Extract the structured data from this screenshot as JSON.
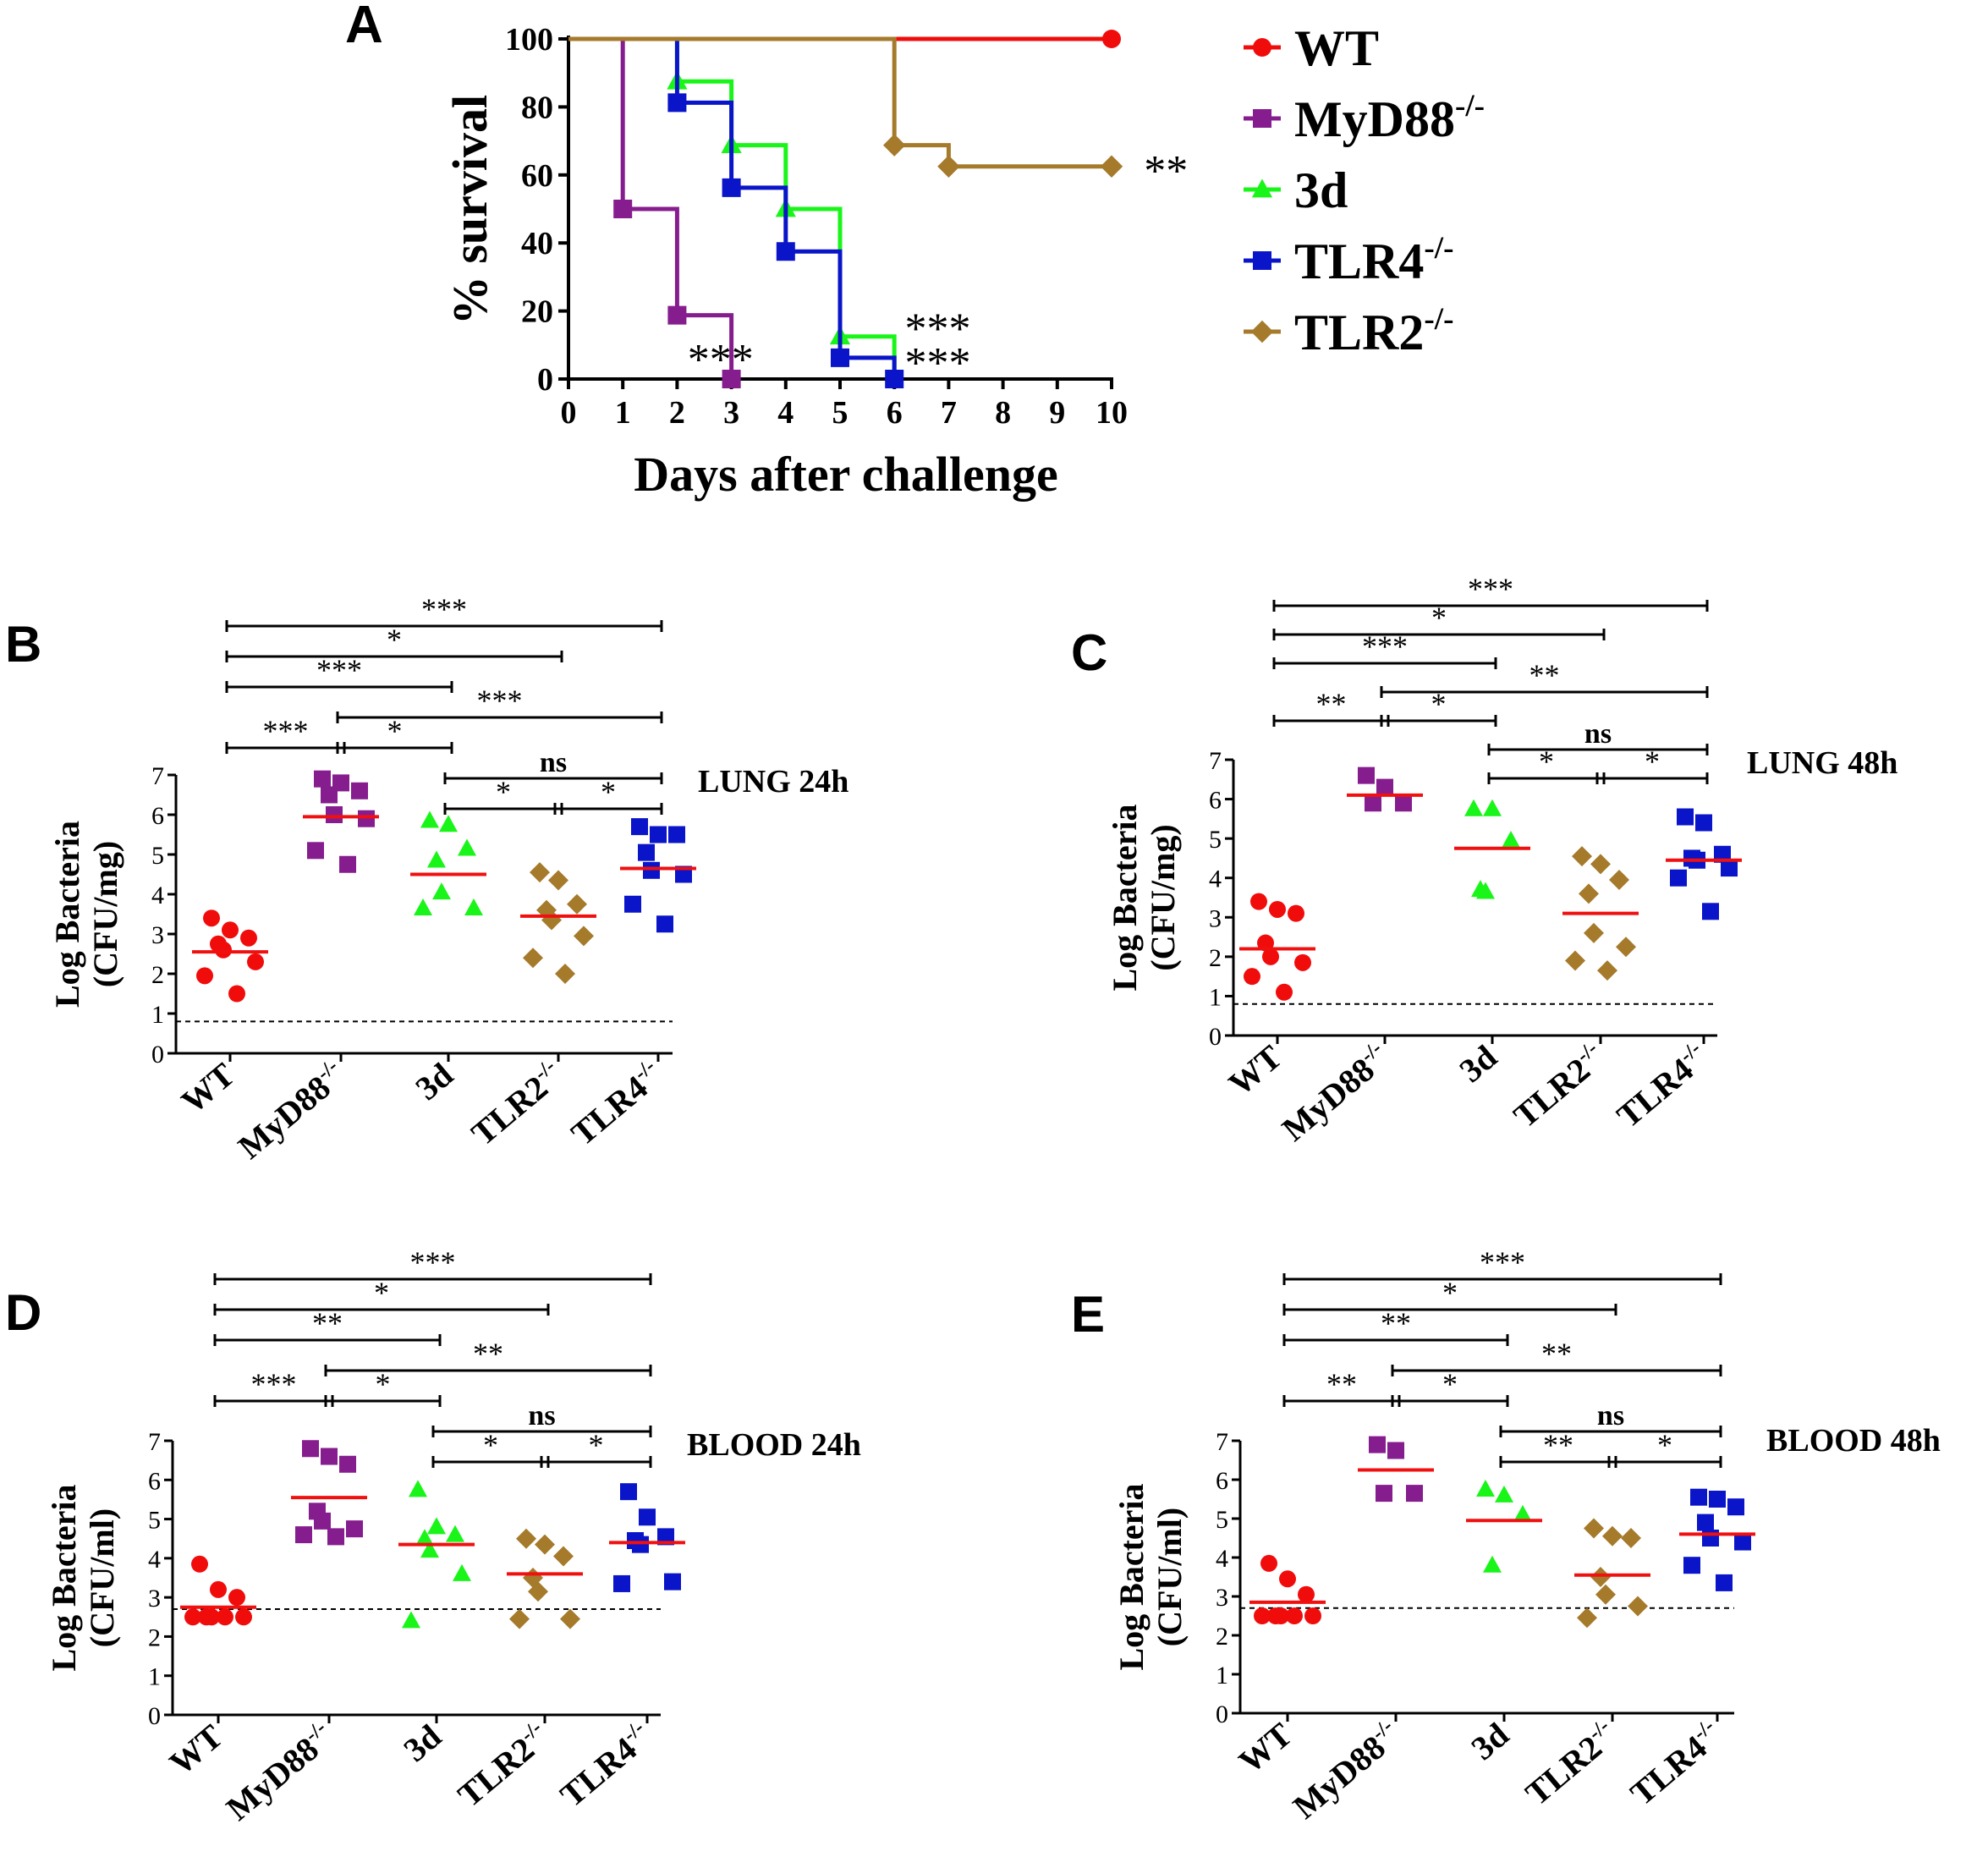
{
  "colors": {
    "WT": "#f10c0c",
    "MyD88": "#861d8e",
    "3d": "#19f519",
    "TLR4": "#0a14c8",
    "TLR2": "#a57a2b",
    "median": "#f01010",
    "axis": "#000000"
  },
  "chart_data": [
    {
      "id": "A",
      "panel_label": "A",
      "type": "line",
      "title": "",
      "xlabel": "Days after challenge",
      "ylabel": "% survival",
      "xlim": [
        0,
        10
      ],
      "ylim": [
        0,
        100
      ],
      "xticks": [
        "0",
        "1",
        "2",
        "3",
        "4",
        "5",
        "6",
        "7",
        "8",
        "9",
        "10"
      ],
      "yticks": [
        "0",
        "20",
        "40",
        "60",
        "80",
        "100"
      ],
      "series": [
        {
          "name": "WT",
          "sup": "",
          "color_key": "WT",
          "marker": "circle",
          "points": [
            [
              0,
              100
            ],
            [
              10,
              100
            ]
          ],
          "markers": [
            [
              10,
              100
            ]
          ]
        },
        {
          "name": "MyD88",
          "sup": "-/-",
          "color_key": "MyD88",
          "marker": "square",
          "points": [
            [
              0,
              100
            ],
            [
              1,
              100
            ],
            [
              1,
              50
            ],
            [
              2,
              50
            ],
            [
              2,
              18.75
            ],
            [
              3,
              18.75
            ],
            [
              3,
              0
            ]
          ],
          "markers": [
            [
              1,
              50
            ],
            [
              2,
              18.75
            ],
            [
              3,
              0
            ]
          ]
        },
        {
          "name": "3d",
          "sup": "",
          "color_key": "3d",
          "marker": "triangle",
          "points": [
            [
              0,
              100
            ],
            [
              2,
              100
            ],
            [
              2,
              87.5
            ],
            [
              3,
              87.5
            ],
            [
              3,
              68.75
            ],
            [
              4,
              68.75
            ],
            [
              4,
              50
            ],
            [
              5,
              50
            ],
            [
              5,
              12.5
            ],
            [
              6,
              12.5
            ],
            [
              6,
              0
            ]
          ],
          "markers": [
            [
              2,
              87.5
            ],
            [
              3,
              68.75
            ],
            [
              4,
              50
            ],
            [
              5,
              12.5
            ]
          ]
        },
        {
          "name": "TLR4",
          "sup": "-/-",
          "color_key": "TLR4",
          "marker": "square",
          "points": [
            [
              0,
              100
            ],
            [
              2,
              100
            ],
            [
              2,
              81.25
            ],
            [
              3,
              81.25
            ],
            [
              3,
              56.25
            ],
            [
              4,
              56.25
            ],
            [
              4,
              37.5
            ],
            [
              5,
              37.5
            ],
            [
              5,
              6.25
            ],
            [
              6,
              6.25
            ],
            [
              6,
              0
            ]
          ],
          "markers": [
            [
              2,
              81.25
            ],
            [
              3,
              56.25
            ],
            [
              4,
              37.5
            ],
            [
              5,
              6.25
            ],
            [
              6,
              0
            ]
          ]
        },
        {
          "name": "TLR2",
          "sup": "-/-",
          "color_key": "TLR2",
          "marker": "diamond",
          "points": [
            [
              0,
              100
            ],
            [
              6,
              100
            ],
            [
              6,
              68.75
            ],
            [
              7,
              68.75
            ],
            [
              7,
              62.5
            ],
            [
              10,
              62.5
            ]
          ],
          "markers": [
            [
              6,
              68.75
            ],
            [
              7,
              62.5
            ],
            [
              10,
              62.5
            ]
          ]
        }
      ],
      "annotations": [
        {
          "text": "***",
          "x": 2.8,
          "y": 7
        },
        {
          "text": "***",
          "x": 6.8,
          "y": 16
        },
        {
          "text": "***",
          "x": 6.8,
          "y": 6
        },
        {
          "text": "**",
          "x": 11.0,
          "y": 62.5
        }
      ],
      "legend_order": [
        "WT",
        "MyD88",
        "3d",
        "TLR4",
        "TLR2"
      ]
    },
    {
      "id": "B",
      "panel_label": "B",
      "type": "scatter",
      "title": "LUNG 24h",
      "ylabel": [
        "Log Bacteria",
        "(CFU/mg)"
      ],
      "ylim": [
        0,
        7
      ],
      "yticks": [
        "0",
        "1",
        "2",
        "3",
        "4",
        "5",
        "6",
        "7"
      ],
      "detection_limit": 0.8,
      "groups": [
        {
          "name": "WT",
          "sup": "",
          "color_key": "WT",
          "marker": "circle",
          "median": 2.55,
          "points": [
            3.4,
            3.1,
            2.9,
            2.75,
            2.6,
            2.3,
            1.95,
            1.5
          ]
        },
        {
          "name": "MyD88",
          "sup": "-/-",
          "color_key": "MyD88",
          "marker": "square",
          "median": 5.95,
          "points": [
            6.9,
            6.8,
            6.6,
            6.5,
            6.0,
            5.9,
            5.1,
            4.75
          ]
        },
        {
          "name": "3d",
          "sup": "",
          "color_key": "3d",
          "marker": "triangle",
          "median": 4.5,
          "points": [
            5.85,
            5.75,
            5.15,
            4.85,
            4.05,
            3.65,
            3.65
          ]
        },
        {
          "name": "TLR2",
          "sup": "-/-",
          "color_key": "TLR2",
          "marker": "diamond",
          "median": 3.45,
          "points": [
            4.55,
            4.35,
            3.75,
            3.6,
            3.35,
            2.95,
            2.4,
            2.0
          ]
        },
        {
          "name": "TLR4",
          "sup": "-/-",
          "color_key": "TLR4",
          "marker": "square",
          "median": 4.65,
          "points": [
            5.7,
            5.5,
            5.5,
            5.05,
            4.6,
            4.5,
            3.75,
            3.25
          ]
        }
      ],
      "brackets": [
        {
          "from": 0,
          "to": 4,
          "level": 0,
          "label": "***"
        },
        {
          "from": 0,
          "to": 3,
          "level": 1,
          "label": "*"
        },
        {
          "from": 0,
          "to": 2,
          "level": 2,
          "label": "***"
        },
        {
          "from": 1,
          "to": 4,
          "level": 3,
          "label": "***"
        },
        {
          "from": 0,
          "to": 1,
          "level": 4,
          "label": "***"
        },
        {
          "from": 1,
          "to": 2,
          "level": 4,
          "label": "*"
        },
        {
          "from": 2,
          "to": 4,
          "level": 5,
          "label": "ns"
        },
        {
          "from": 2,
          "to": 3,
          "level": 6,
          "label": "*"
        },
        {
          "from": 3,
          "to": 4,
          "level": 6,
          "label": "*"
        }
      ]
    },
    {
      "id": "C",
      "panel_label": "C",
      "type": "scatter",
      "title": "LUNG 48h",
      "ylabel": [
        "Log Bacteria",
        "(CFU/mg)"
      ],
      "ylim": [
        0,
        7
      ],
      "yticks": [
        "0",
        "1",
        "2",
        "3",
        "4",
        "5",
        "6",
        "7"
      ],
      "detection_limit": 0.8,
      "groups": [
        {
          "name": "WT",
          "sup": "",
          "color_key": "WT",
          "marker": "circle",
          "median": 2.2,
          "points": [
            3.4,
            3.2,
            3.1,
            2.35,
            2.0,
            1.85,
            1.5,
            1.1
          ]
        },
        {
          "name": "MyD88",
          "sup": "-/-",
          "color_key": "MyD88",
          "marker": "square",
          "median": 6.1,
          "points": [
            6.6,
            6.3,
            5.9,
            5.9
          ]
        },
        {
          "name": "3d",
          "sup": "",
          "color_key": "3d",
          "marker": "triangle",
          "median": 4.75,
          "points": [
            5.75,
            5.75,
            4.95,
            3.7,
            3.65
          ]
        },
        {
          "name": "TLR2",
          "sup": "-/-",
          "color_key": "TLR2",
          "marker": "diamond",
          "median": 3.1,
          "points": [
            4.55,
            4.35,
            3.95,
            3.6,
            2.6,
            2.25,
            1.9,
            1.65
          ]
        },
        {
          "name": "TLR4",
          "sup": "-/-",
          "color_key": "TLR4",
          "marker": "square",
          "median": 4.45,
          "points": [
            5.55,
            5.4,
            4.6,
            4.5,
            4.45,
            4.25,
            4.0,
            3.15
          ]
        }
      ],
      "brackets": [
        {
          "from": 0,
          "to": 4,
          "level": 0,
          "label": "***"
        },
        {
          "from": 0,
          "to": 3,
          "level": 1,
          "label": "*"
        },
        {
          "from": 0,
          "to": 2,
          "level": 2,
          "label": "***"
        },
        {
          "from": 1,
          "to": 4,
          "level": 3,
          "label": "**"
        },
        {
          "from": 0,
          "to": 1,
          "level": 4,
          "label": "**"
        },
        {
          "from": 1,
          "to": 2,
          "level": 4,
          "label": "*"
        },
        {
          "from": 2,
          "to": 4,
          "level": 5,
          "label": "ns"
        },
        {
          "from": 2,
          "to": 3,
          "level": 6,
          "label": "*"
        },
        {
          "from": 3,
          "to": 4,
          "level": 6,
          "label": "*"
        }
      ]
    },
    {
      "id": "D",
      "panel_label": "D",
      "type": "scatter",
      "title": "BLOOD 24h",
      "ylabel": [
        "Log Bacteria",
        "(CFU/ml)"
      ],
      "ylim": [
        0,
        7
      ],
      "yticks": [
        "0",
        "1",
        "2",
        "3",
        "4",
        "5",
        "6",
        "7"
      ],
      "detection_limit": 2.7,
      "groups": [
        {
          "name": "WT",
          "sup": "",
          "color_key": "WT",
          "marker": "circle",
          "median": 2.75,
          "points": [
            3.85,
            3.2,
            3.0,
            2.5,
            2.5,
            2.5,
            2.5,
            2.5
          ]
        },
        {
          "name": "MyD88",
          "sup": "-/-",
          "color_key": "MyD88",
          "marker": "square",
          "median": 5.55,
          "points": [
            6.8,
            6.6,
            6.4,
            5.2,
            4.95,
            4.75,
            4.6,
            4.55
          ]
        },
        {
          "name": "3d",
          "sup": "",
          "color_key": "3d",
          "marker": "triangle",
          "median": 4.35,
          "points": [
            5.75,
            4.8,
            4.6,
            4.5,
            4.2,
            3.6,
            2.4
          ]
        },
        {
          "name": "TLR2",
          "sup": "-/-",
          "color_key": "TLR2",
          "marker": "diamond",
          "median": 3.6,
          "points": [
            4.5,
            4.35,
            4.05,
            3.5,
            3.15,
            2.45,
            2.45
          ]
        },
        {
          "name": "TLR4",
          "sup": "-/-",
          "color_key": "TLR4",
          "marker": "square",
          "median": 4.4,
          "points": [
            5.7,
            5.05,
            4.55,
            4.45,
            4.35,
            3.4,
            3.35
          ]
        }
      ],
      "brackets": [
        {
          "from": 0,
          "to": 4,
          "level": 0,
          "label": "***"
        },
        {
          "from": 0,
          "to": 3,
          "level": 1,
          "label": "*"
        },
        {
          "from": 0,
          "to": 2,
          "level": 2,
          "label": "**"
        },
        {
          "from": 1,
          "to": 4,
          "level": 3,
          "label": "**"
        },
        {
          "from": 0,
          "to": 1,
          "level": 4,
          "label": "***"
        },
        {
          "from": 1,
          "to": 2,
          "level": 4,
          "label": "*"
        },
        {
          "from": 2,
          "to": 4,
          "level": 5,
          "label": "ns"
        },
        {
          "from": 2,
          "to": 3,
          "level": 6,
          "label": "*"
        },
        {
          "from": 3,
          "to": 4,
          "level": 6,
          "label": "*"
        }
      ]
    },
    {
      "id": "E",
      "panel_label": "E",
      "type": "scatter",
      "title": "BLOOD 48h",
      "ylabel": [
        "Log Bacteria",
        "(CFU/ml)"
      ],
      "ylim": [
        0,
        7
      ],
      "yticks": [
        "0",
        "1",
        "2",
        "3",
        "4",
        "5",
        "6",
        "7"
      ],
      "detection_limit": 2.7,
      "groups": [
        {
          "name": "WT",
          "sup": "",
          "color_key": "WT",
          "marker": "circle",
          "median": 2.85,
          "points": [
            3.85,
            3.45,
            3.05,
            2.5,
            2.5,
            2.5,
            2.5,
            2.5
          ]
        },
        {
          "name": "MyD88",
          "sup": "-/-",
          "color_key": "MyD88",
          "marker": "square",
          "median": 6.25,
          "points": [
            6.9,
            6.75,
            5.65,
            5.65
          ]
        },
        {
          "name": "3d",
          "sup": "",
          "color_key": "3d",
          "marker": "triangle",
          "median": 4.95,
          "points": [
            5.75,
            5.6,
            5.1,
            3.8
          ]
        },
        {
          "name": "TLR2",
          "sup": "-/-",
          "color_key": "TLR2",
          "marker": "diamond",
          "median": 3.55,
          "points": [
            4.75,
            4.55,
            4.5,
            3.5,
            3.05,
            2.75,
            2.45
          ]
        },
        {
          "name": "TLR4",
          "sup": "-/-",
          "color_key": "TLR4",
          "marker": "square",
          "median": 4.6,
          "points": [
            5.55,
            5.5,
            5.3,
            4.9,
            4.5,
            4.4,
            3.8,
            3.35
          ]
        }
      ],
      "brackets": [
        {
          "from": 0,
          "to": 4,
          "level": 0,
          "label": "***"
        },
        {
          "from": 0,
          "to": 3,
          "level": 1,
          "label": "*"
        },
        {
          "from": 0,
          "to": 2,
          "level": 2,
          "label": "**"
        },
        {
          "from": 1,
          "to": 4,
          "level": 3,
          "label": "**"
        },
        {
          "from": 0,
          "to": 1,
          "level": 4,
          "label": "**"
        },
        {
          "from": 1,
          "to": 2,
          "level": 4,
          "label": "*"
        },
        {
          "from": 2,
          "to": 4,
          "level": 5,
          "label": "ns"
        },
        {
          "from": 2,
          "to": 3,
          "level": 6,
          "label": "**"
        },
        {
          "from": 3,
          "to": 4,
          "level": 6,
          "label": "*"
        }
      ]
    }
  ]
}
